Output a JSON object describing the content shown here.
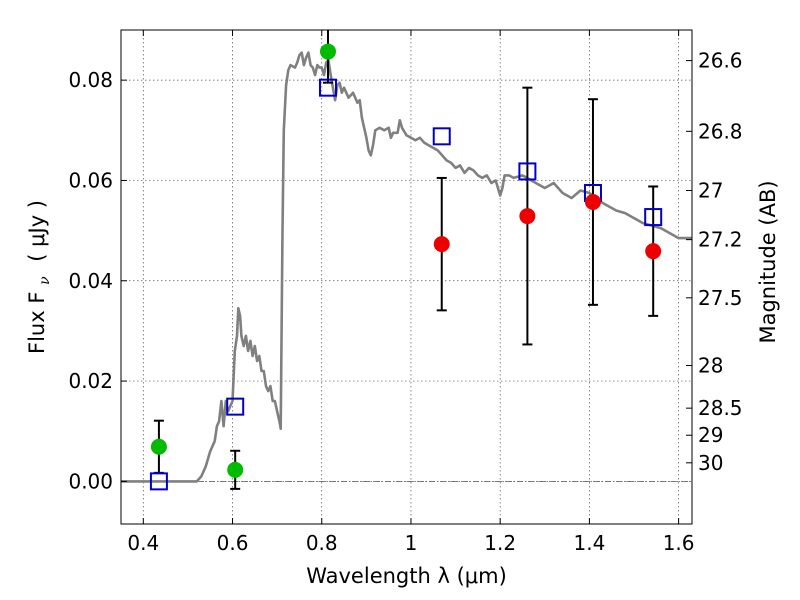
{
  "chart_data": {
    "type": "scatter",
    "xlabel": "Wavelength  λ (μm)",
    "ylabel_left": "Flux  F",
    "ylabel_left_subscript": "ν",
    "ylabel_left_unit": "( μJy )",
    "ylabel_right": "Magnitude (AB)",
    "xlim": [
      0.35,
      1.63
    ],
    "ylim": [
      -0.0085,
      0.09
    ],
    "grid": true,
    "x_ticks": [
      0.4,
      0.6,
      0.8,
      1.0,
      1.2,
      1.4,
      1.6
    ],
    "x_tick_labels": [
      "0.4",
      "0.6",
      "0.8",
      "1",
      "1.2",
      "1.4",
      "1.6"
    ],
    "y_ticks": [
      0.0,
      0.02,
      0.04,
      0.06,
      0.08
    ],
    "y_tick_labels": [
      "0.00",
      "0.02",
      "0.04",
      "0.06",
      "0.08"
    ],
    "right_ticks": [
      {
        "label": "26.6",
        "flux": 0.0839
      },
      {
        "label": "26.8",
        "flux": 0.0698
      },
      {
        "label": "27",
        "flux": 0.058
      },
      {
        "label": "27.2",
        "flux": 0.0482
      },
      {
        "label": "27.5",
        "flux": 0.0366
      },
      {
        "label": "28",
        "flux": 0.0231
      },
      {
        "label": "28.5",
        "flux": 0.0146
      },
      {
        "label": "29",
        "flux": 0.0092
      },
      {
        "label": "30",
        "flux": 0.0037
      }
    ],
    "zero_line": 0.0,
    "series": [
      {
        "kind": "model_sed",
        "color": "#808080",
        "points": [
          [
            0.35,
            0.0
          ],
          [
            0.52,
            0.0
          ],
          [
            0.53,
            0.001
          ],
          [
            0.54,
            0.003
          ],
          [
            0.55,
            0.006
          ],
          [
            0.56,
            0.008
          ],
          [
            0.565,
            0.011
          ],
          [
            0.57,
            0.012
          ],
          [
            0.575,
            0.016
          ],
          [
            0.58,
            0.011
          ],
          [
            0.585,
            0.016
          ],
          [
            0.59,
            0.014
          ],
          [
            0.595,
            0.015
          ],
          [
            0.6,
            0.016
          ],
          [
            0.605,
            0.026
          ],
          [
            0.61,
            0.029
          ],
          [
            0.613,
            0.0345
          ],
          [
            0.617,
            0.033
          ],
          [
            0.62,
            0.029
          ],
          [
            0.625,
            0.027
          ],
          [
            0.63,
            0.029
          ],
          [
            0.635,
            0.026
          ],
          [
            0.64,
            0.028
          ],
          [
            0.645,
            0.025
          ],
          [
            0.65,
            0.027
          ],
          [
            0.655,
            0.024
          ],
          [
            0.66,
            0.025
          ],
          [
            0.665,
            0.022
          ],
          [
            0.67,
            0.022
          ],
          [
            0.675,
            0.019
          ],
          [
            0.68,
            0.018
          ],
          [
            0.685,
            0.019
          ],
          [
            0.69,
            0.016
          ],
          [
            0.695,
            0.016
          ],
          [
            0.7,
            0.014
          ],
          [
            0.705,
            0.012
          ],
          [
            0.708,
            0.0105
          ],
          [
            0.712,
            0.05
          ],
          [
            0.715,
            0.07
          ],
          [
            0.72,
            0.079
          ],
          [
            0.725,
            0.082
          ],
          [
            0.73,
            0.083
          ],
          [
            0.74,
            0.0825
          ],
          [
            0.745,
            0.0835
          ],
          [
            0.75,
            0.085
          ],
          [
            0.755,
            0.0855
          ],
          [
            0.76,
            0.083
          ],
          [
            0.765,
            0.0845
          ],
          [
            0.77,
            0.0855
          ],
          [
            0.775,
            0.083
          ],
          [
            0.78,
            0.0825
          ],
          [
            0.785,
            0.081
          ],
          [
            0.79,
            0.083
          ],
          [
            0.795,
            0.0825
          ],
          [
            0.8,
            0.0825
          ],
          [
            0.805,
            0.081
          ],
          [
            0.81,
            0.0835
          ],
          [
            0.815,
            0.084
          ],
          [
            0.82,
            0.081
          ],
          [
            0.825,
            0.0785
          ],
          [
            0.83,
            0.076
          ],
          [
            0.835,
            0.079
          ],
          [
            0.84,
            0.0795
          ],
          [
            0.845,
            0.0775
          ],
          [
            0.85,
            0.0785
          ],
          [
            0.86,
            0.0765
          ],
          [
            0.87,
            0.0775
          ],
          [
            0.88,
            0.0755
          ],
          [
            0.885,
            0.076
          ],
          [
            0.89,
            0.0725
          ],
          [
            0.9,
            0.0685
          ],
          [
            0.905,
            0.066
          ],
          [
            0.91,
            0.065
          ],
          [
            0.915,
            0.067
          ],
          [
            0.92,
            0.07
          ],
          [
            0.93,
            0.0705
          ],
          [
            0.94,
            0.07
          ],
          [
            0.95,
            0.0705
          ],
          [
            0.955,
            0.0685
          ],
          [
            0.96,
            0.0695
          ],
          [
            0.97,
            0.0695
          ],
          [
            0.975,
            0.072
          ],
          [
            0.98,
            0.0705
          ],
          [
            0.99,
            0.069
          ],
          [
            1.0,
            0.0685
          ],
          [
            1.01,
            0.068
          ],
          [
            1.02,
            0.0685
          ],
          [
            1.03,
            0.0675
          ],
          [
            1.04,
            0.067
          ],
          [
            1.05,
            0.0665
          ],
          [
            1.06,
            0.066
          ],
          [
            1.07,
            0.065
          ],
          [
            1.08,
            0.064
          ],
          [
            1.09,
            0.0635
          ],
          [
            1.1,
            0.0625
          ],
          [
            1.11,
            0.063
          ],
          [
            1.12,
            0.0615
          ],
          [
            1.13,
            0.0625
          ],
          [
            1.14,
            0.062
          ],
          [
            1.15,
            0.061
          ],
          [
            1.16,
            0.0605
          ],
          [
            1.17,
            0.061
          ],
          [
            1.18,
            0.0595
          ],
          [
            1.19,
            0.06
          ],
          [
            1.2,
            0.057
          ],
          [
            1.205,
            0.0585
          ],
          [
            1.21,
            0.061
          ],
          [
            1.22,
            0.061
          ],
          [
            1.23,
            0.0605
          ],
          [
            1.25,
            0.061
          ],
          [
            1.27,
            0.06
          ],
          [
            1.3,
            0.0585
          ],
          [
            1.32,
            0.0595
          ],
          [
            1.34,
            0.0575
          ],
          [
            1.36,
            0.0565
          ],
          [
            1.38,
            0.058
          ],
          [
            1.4,
            0.0575
          ],
          [
            1.42,
            0.056
          ],
          [
            1.44,
            0.055
          ],
          [
            1.46,
            0.054
          ],
          [
            1.48,
            0.0535
          ],
          [
            1.5,
            0.0525
          ],
          [
            1.52,
            0.0515
          ],
          [
            1.54,
            0.051
          ],
          [
            1.56,
            0.0505
          ],
          [
            1.58,
            0.0495
          ],
          [
            1.6,
            0.0485
          ],
          [
            1.63,
            0.0485
          ]
        ]
      },
      {
        "kind": "model_bandpass",
        "marker": "open-square",
        "color": "#0000cc",
        "points": [
          {
            "x": 0.435,
            "y": 0.0
          },
          {
            "x": 0.606,
            "y": 0.0149
          },
          {
            "x": 0.814,
            "y": 0.0785
          },
          {
            "x": 1.069,
            "y": 0.0688
          },
          {
            "x": 1.261,
            "y": 0.0618
          },
          {
            "x": 1.408,
            "y": 0.0575
          },
          {
            "x": 1.543,
            "y": 0.0527
          }
        ]
      },
      {
        "kind": "observed_optical",
        "marker": "filled-circle",
        "color": "#00bb00",
        "points": [
          {
            "x": 0.435,
            "y": 0.0069,
            "err": 0.0052
          },
          {
            "x": 0.606,
            "y": 0.0023,
            "err": 0.0038
          },
          {
            "x": 0.814,
            "y": 0.0857,
            "err": 0.0062
          }
        ]
      },
      {
        "kind": "observed_nir",
        "marker": "filled-circle",
        "color": "#ee0000",
        "points": [
          {
            "x": 1.069,
            "y": 0.0473,
            "err": 0.0132
          },
          {
            "x": 1.261,
            "y": 0.0529,
            "err": 0.0256
          },
          {
            "x": 1.408,
            "y": 0.0557,
            "err": 0.0205
          },
          {
            "x": 1.543,
            "y": 0.0459,
            "err": 0.0129
          }
        ]
      }
    ]
  }
}
